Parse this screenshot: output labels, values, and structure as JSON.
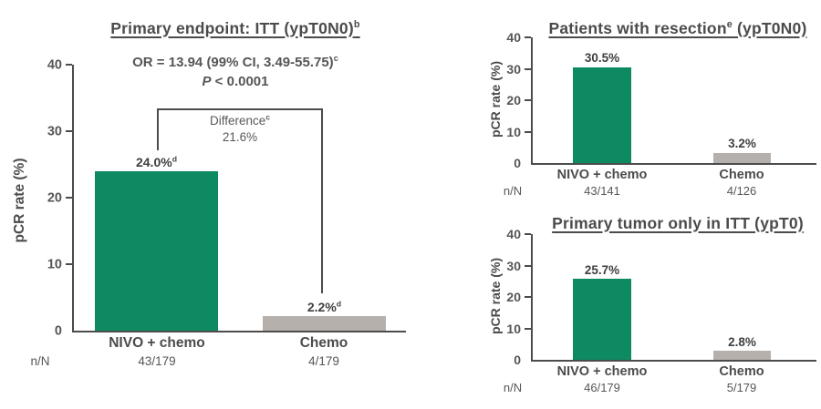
{
  "figure": {
    "background": "#FFFFFF",
    "accent_green": "#0E8A63",
    "accent_gray": "#B5B0AC",
    "text_color": "#4B4B4B"
  },
  "chart_data": [
    {
      "id": "primary-endpoint-itt",
      "type": "bar",
      "title": {
        "pre": "Primary endpoint: ITT (ypT0N0)",
        "sup": "b",
        "post": ""
      },
      "stats_line1": {
        "text": "OR = 13.94 (99% CI, 3.49-55.75)",
        "sup": "c"
      },
      "stats_line2": {
        "italic": "P",
        "rest": " < 0.0001"
      },
      "difference": {
        "label": "Difference",
        "sup": "c",
        "value": "21.6%"
      },
      "ylabel": "pCR rate (%)",
      "ylim": [
        0,
        40
      ],
      "yticks": [
        0,
        10,
        20,
        30,
        40
      ],
      "grid": false,
      "n_header": "n/N",
      "categories": [
        "NIVO + chemo",
        "Chemo"
      ],
      "values": [
        24.0,
        2.2
      ],
      "value_labels": [
        {
          "text": "24.0%",
          "sup": "d"
        },
        {
          "text": "2.2%",
          "sup": "d"
        }
      ],
      "n_values": [
        "43/179",
        "4/179"
      ],
      "bar_colors": [
        "#0E8A63",
        "#B5B0AC"
      ]
    },
    {
      "id": "patients-with-resection",
      "type": "bar",
      "title": {
        "pre": "Patients with resection",
        "sup": "e",
        "post": " (ypT0N0)"
      },
      "ylabel": "pCR rate (%)",
      "ylim": [
        0,
        40
      ],
      "yticks": [
        0,
        10,
        20,
        30,
        40
      ],
      "grid": false,
      "n_header": "n/N",
      "categories": [
        "NIVO + chemo",
        "Chemo"
      ],
      "values": [
        30.5,
        3.2
      ],
      "value_labels": [
        {
          "text": "30.5%",
          "sup": ""
        },
        {
          "text": "3.2%",
          "sup": ""
        }
      ],
      "n_values": [
        "43/141",
        "4/126"
      ],
      "bar_colors": [
        "#0E8A63",
        "#B5B0AC"
      ]
    },
    {
      "id": "primary-tumor-only-itt",
      "type": "bar",
      "title": {
        "pre": "Primary tumor only in ITT (ypT0)",
        "sup": "",
        "post": ""
      },
      "ylabel": "pCR rate (%)",
      "ylim": [
        0,
        40
      ],
      "yticks": [
        0,
        10,
        20,
        30,
        40
      ],
      "grid": false,
      "n_header": "n/N",
      "categories": [
        "NIVO + chemo",
        "Chemo"
      ],
      "values": [
        25.7,
        2.8
      ],
      "value_labels": [
        {
          "text": "25.7%",
          "sup": ""
        },
        {
          "text": "2.8%",
          "sup": ""
        }
      ],
      "n_values": [
        "46/179",
        "5/179"
      ],
      "bar_colors": [
        "#0E8A63",
        "#B5B0AC"
      ]
    }
  ]
}
